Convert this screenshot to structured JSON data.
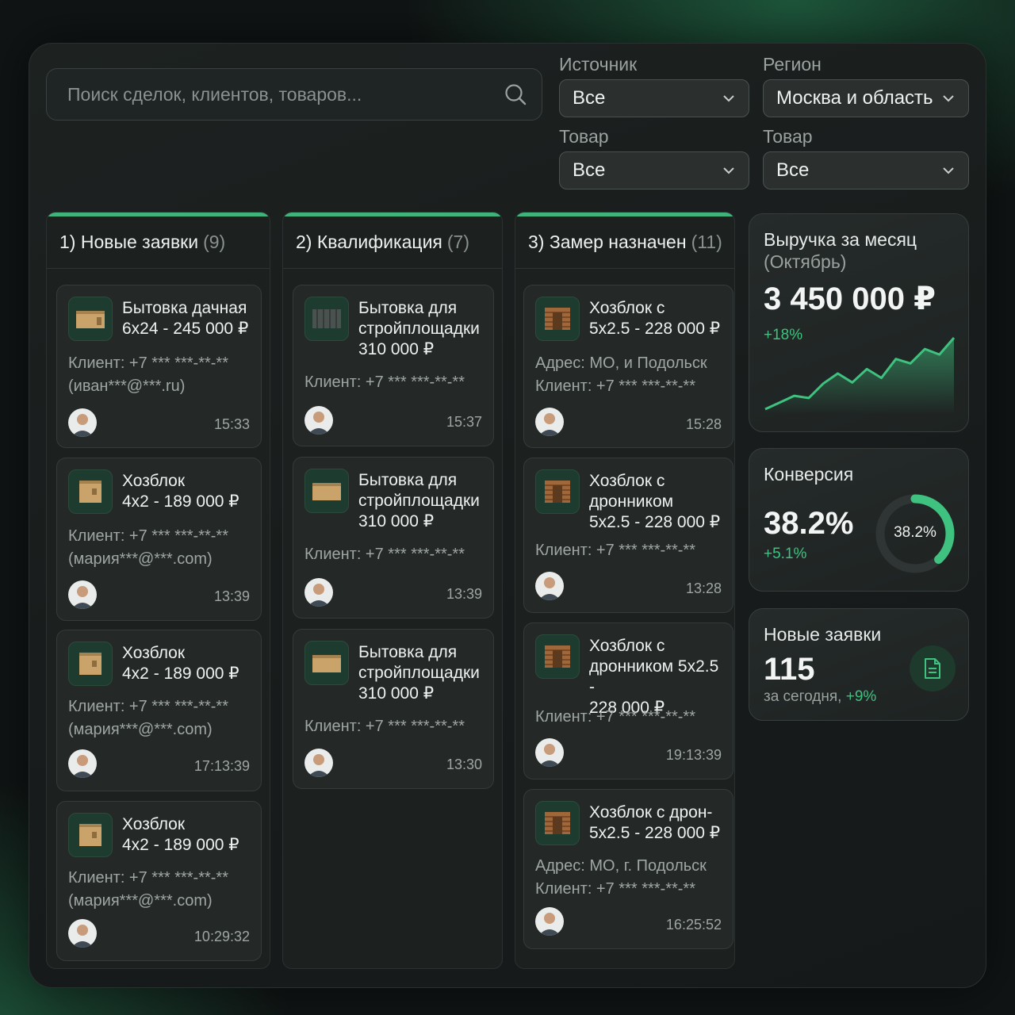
{
  "search": {
    "placeholder": "Поиск сделок, клиентов, товаров..."
  },
  "filters": [
    {
      "label": "Источник",
      "value": "Все"
    },
    {
      "label": "Регион",
      "value": "Москва и область"
    },
    {
      "label": "Товар",
      "value": "Все"
    },
    {
      "label": "Товар",
      "value": "Все"
    }
  ],
  "columns": [
    {
      "title": "1) Новые заявки",
      "count": "(9)",
      "cards": [
        {
          "title": "Бытовка дачная\n6x24 - 245 000 ₽",
          "meta": "Клиент: +7 *** ***-**-**\n(иван***@***.ru)",
          "time": "15:33"
        },
        {
          "title": "Хозблок\n4x2 - 189 000 ₽",
          "meta": "Клиент: +7 *** ***-**-**\n(мария***@***.com)",
          "time": "13:39"
        },
        {
          "title": "Хозблок\n4x2 - 189 000 ₽",
          "meta": "Клиент: +7 *** ***-**-**\n(мария***@***.com)",
          "time": "17:13:39"
        },
        {
          "title": "Хозблок\n4x2 - 189 000 ₽",
          "meta": "Клиент: +7 *** ***-**-**\n(мария***@***.com)",
          "time": "10:29:32"
        }
      ]
    },
    {
      "title": "2) Квалификация",
      "count": "(7)",
      "cards": [
        {
          "title": "Бытовка для\nстройплощадки\n310 000 ₽",
          "meta": "Клиент: +7 *** ***-**-**",
          "time": "15:37"
        },
        {
          "title": "Бытовка для\nстройплощадки\n310 000 ₽",
          "meta": "Клиент: +7 *** ***-**-**",
          "time": "13:39"
        },
        {
          "title": "Бытовка для\nстройплощадки\n310 000 ₽",
          "meta": "Клиент: +7 *** ***-**-**",
          "time": "13:30"
        }
      ]
    },
    {
      "title": "3) Замер назначен",
      "count": "(11)",
      "cards": [
        {
          "title": "Хозблок с\n5x2.5 - 228 000 ₽",
          "meta": "Адрес: МО, и Подольск\nКлиент: +7 *** ***-**-**",
          "time": "15:28"
        },
        {
          "title": "Хозблок с\nдронником\n5x2.5 - 228 000 ₽",
          "meta": "Клиент: +7 *** ***-**-**",
          "time": "13:28"
        },
        {
          "title": "Хозблок с\nдронником 5x2.5 -\n228 000 ₽",
          "meta": "Клиент: +7 *** ***-**-**",
          "time": "19:13:39"
        },
        {
          "title": "Хозблок с дрон-\n5x2.5 - 228 000 ₽",
          "meta": "Адрес: МО, г. Подольск\nКлиент: +7 *** ***-**-**",
          "time": "16:25:52"
        }
      ]
    }
  ],
  "revenue": {
    "title": "Выручка за месяц",
    "period": "(Октябрь)",
    "value": "3 450 000 ₽",
    "change": "+18%",
    "trend": [
      2,
      14,
      26,
      22,
      48,
      66,
      50,
      74,
      58,
      92,
      84,
      110,
      100,
      130
    ]
  },
  "conversion": {
    "title": "Конверсия",
    "value": "38.2%",
    "change": "+5.1%",
    "ring_label": "38.2%",
    "percent": 38.2
  },
  "new_requests": {
    "title": "Новые заявки",
    "value": "115",
    "sub": "за сегодня,",
    "change": "+9%"
  },
  "colors": {
    "accent": "#3fc27f",
    "background": "#101414",
    "card": "#242928"
  },
  "icons": {
    "search": "search-icon",
    "chevron": "chevron-down-icon",
    "document": "document-icon"
  }
}
